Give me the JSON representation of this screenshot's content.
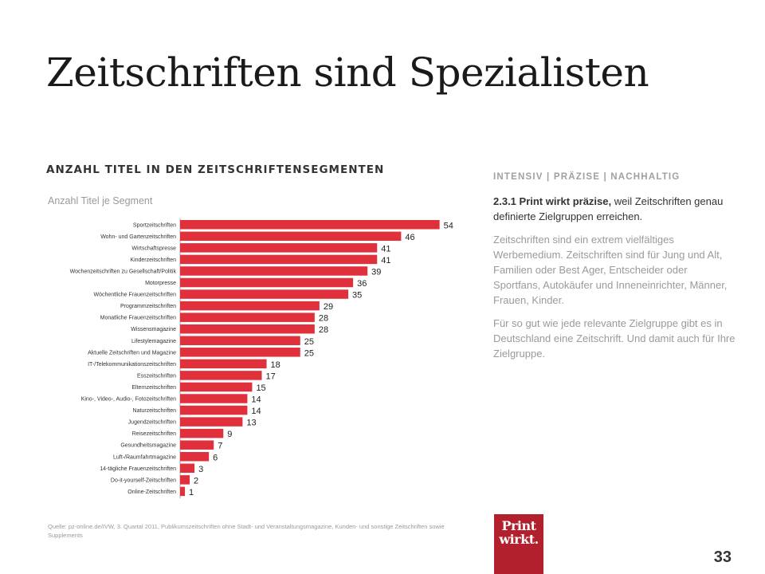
{
  "slide": {
    "title": "Zeitschriften sind Spezialisten",
    "page_number": "33"
  },
  "chart_section": {
    "heading": "ANZAHL TITEL IN DEN ZEITSCHRIFTENSEGMENTEN",
    "subtitle": "Anzahl Titel je Segment"
  },
  "chart_data": {
    "type": "bar",
    "orientation": "horizontal",
    "bar_color": "#e0303b",
    "categories": [
      "Sportzeitschriften",
      "Wohn- und Gartenzeitschriften",
      "Wirtschaftspresse",
      "Kinderzeitschriften",
      "Wochenzeitschriften zu Gesellschaft/Politik",
      "Motorpresse",
      "Wöchentliche Frauenzeitschriften",
      "Programmzeitschriften",
      "Monatliche Frauenzeitschriften",
      "Wissensmagazine",
      "Lifestylemagazine",
      "Aktuelle Zeitschriften und Magazine",
      "IT-/Telekommunikationszeitschriften",
      "Esszeitschriften",
      "Elternzeitschriften",
      "Kino-, Video-, Audio-, Fotozeitschriften",
      "Naturzeitschriften",
      "Jugendzeitschriften",
      "Reisezeitschriften",
      "Gesundheitsmagazine",
      "Luft-/Raumfahrtmagazine",
      "14-tägliche Frauenzeitschriften",
      "Do-it-yourself-Zeitschriften",
      "Online-Zeitschriften"
    ],
    "values": [
      54,
      46,
      41,
      41,
      39,
      36,
      35,
      29,
      28,
      28,
      25,
      25,
      18,
      17,
      15,
      14,
      14,
      13,
      9,
      7,
      6,
      3,
      2,
      1
    ]
  },
  "sidebar": {
    "heading": "INTENSIV | PRÄZISE | NACHHALTIG",
    "lead_bold": "2.3.1 Print wirkt präzise,",
    "lead_rest": " weil Zeitschriften genau definierte Zielgruppen erreichen.",
    "para1": "Zeitschriften sind ein extrem vielfältiges Werbemedium. Zeitschriften sind für Jung und Alt, Familien oder Best Ager, Entscheider oder Sportfans, Autokäufer und Inneneinrichter, Männer, Frauen, Kinder.",
    "para2": "Für so gut wie jede relevante Zielgruppe gibt es in Deutschland eine Zeitschrift. Und damit auch für Ihre Zielgruppe."
  },
  "source": "Quelle: pz-online.de/IVW, 3. Quartal 2011, Publikumszeitschriften ohne Stadt- und Veranstaltungsmagazine, Kunden- und sonstige Zeitschriften sowie Supplements",
  "logo": {
    "line1": "Print",
    "line2": "wirkt.",
    "color": "#b21f2d"
  }
}
